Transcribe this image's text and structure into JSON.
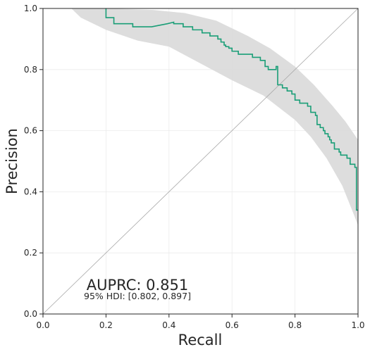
{
  "chart_data": {
    "type": "line",
    "xlabel": "Recall",
    "ylabel": "Precision",
    "xlim": [
      0,
      1
    ],
    "ylim": [
      0,
      1
    ],
    "x_ticks": [
      "0.0",
      "0.2",
      "0.4",
      "0.6",
      "0.8",
      "1.0"
    ],
    "y_ticks": [
      "0.0",
      "0.2",
      "0.4",
      "0.6",
      "0.8",
      "1.0"
    ],
    "grid": true,
    "reference_line": {
      "x": [
        0,
        1
      ],
      "y": [
        0,
        1
      ]
    },
    "annotations": {
      "auprc": "AUPRC: 0.851",
      "hdi": "95% HDI: [0.802, 0.897]"
    },
    "series": [
      {
        "color": "#1a9e77",
        "points": [
          [
            0.2,
            1.0
          ],
          [
            0.2,
            0.97
          ],
          [
            0.225,
            0.97
          ],
          [
            0.225,
            0.95
          ],
          [
            0.285,
            0.95
          ],
          [
            0.285,
            0.94
          ],
          [
            0.345,
            0.94
          ],
          [
            0.395,
            0.95
          ],
          [
            0.415,
            0.955
          ],
          [
            0.415,
            0.95
          ],
          [
            0.445,
            0.95
          ],
          [
            0.445,
            0.94
          ],
          [
            0.475,
            0.94
          ],
          [
            0.475,
            0.93
          ],
          [
            0.505,
            0.93
          ],
          [
            0.505,
            0.92
          ],
          [
            0.53,
            0.92
          ],
          [
            0.53,
            0.91
          ],
          [
            0.555,
            0.91
          ],
          [
            0.555,
            0.9
          ],
          [
            0.565,
            0.9
          ],
          [
            0.565,
            0.89
          ],
          [
            0.575,
            0.89
          ],
          [
            0.575,
            0.88
          ],
          [
            0.58,
            0.88
          ],
          [
            0.58,
            0.875
          ],
          [
            0.59,
            0.875
          ],
          [
            0.59,
            0.87
          ],
          [
            0.6,
            0.87
          ],
          [
            0.6,
            0.86
          ],
          [
            0.62,
            0.86
          ],
          [
            0.62,
            0.85
          ],
          [
            0.65,
            0.85
          ],
          [
            0.665,
            0.85
          ],
          [
            0.665,
            0.84
          ],
          [
            0.69,
            0.84
          ],
          [
            0.69,
            0.83
          ],
          [
            0.705,
            0.83
          ],
          [
            0.705,
            0.81
          ],
          [
            0.715,
            0.81
          ],
          [
            0.715,
            0.8
          ],
          [
            0.74,
            0.8
          ],
          [
            0.74,
            0.81
          ],
          [
            0.745,
            0.81
          ],
          [
            0.745,
            0.75
          ],
          [
            0.76,
            0.75
          ],
          [
            0.76,
            0.74
          ],
          [
            0.775,
            0.74
          ],
          [
            0.775,
            0.73
          ],
          [
            0.79,
            0.73
          ],
          [
            0.79,
            0.72
          ],
          [
            0.8,
            0.72
          ],
          [
            0.8,
            0.7
          ],
          [
            0.815,
            0.7
          ],
          [
            0.815,
            0.69
          ],
          [
            0.84,
            0.69
          ],
          [
            0.84,
            0.68
          ],
          [
            0.85,
            0.68
          ],
          [
            0.85,
            0.66
          ],
          [
            0.865,
            0.66
          ],
          [
            0.865,
            0.65
          ],
          [
            0.87,
            0.65
          ],
          [
            0.87,
            0.62
          ],
          [
            0.88,
            0.62
          ],
          [
            0.88,
            0.61
          ],
          [
            0.89,
            0.61
          ],
          [
            0.89,
            0.6
          ],
          [
            0.895,
            0.6
          ],
          [
            0.895,
            0.59
          ],
          [
            0.905,
            0.59
          ],
          [
            0.905,
            0.58
          ],
          [
            0.91,
            0.58
          ],
          [
            0.91,
            0.57
          ],
          [
            0.915,
            0.57
          ],
          [
            0.915,
            0.56
          ],
          [
            0.925,
            0.56
          ],
          [
            0.925,
            0.54
          ],
          [
            0.94,
            0.54
          ],
          [
            0.94,
            0.53
          ],
          [
            0.945,
            0.53
          ],
          [
            0.945,
            0.52
          ],
          [
            0.965,
            0.52
          ],
          [
            0.965,
            0.51
          ],
          [
            0.975,
            0.51
          ],
          [
            0.975,
            0.49
          ],
          [
            0.99,
            0.49
          ],
          [
            0.99,
            0.48
          ],
          [
            0.995,
            0.48
          ],
          [
            0.995,
            0.34
          ],
          [
            1.0,
            0.34
          ]
        ]
      }
    ],
    "band": {
      "color": "#d9d9d9",
      "upper": [
        [
          0.09,
          1.0
        ],
        [
          0.2,
          1.0
        ],
        [
          0.35,
          0.995
        ],
        [
          0.45,
          0.985
        ],
        [
          0.55,
          0.96
        ],
        [
          0.65,
          0.91
        ],
        [
          0.72,
          0.87
        ],
        [
          0.8,
          0.81
        ],
        [
          0.86,
          0.75
        ],
        [
          0.92,
          0.68
        ],
        [
          0.96,
          0.63
        ],
        [
          1.0,
          0.57
        ]
      ],
      "lower": [
        [
          1.0,
          0.29
        ],
        [
          0.985,
          0.33
        ],
        [
          0.95,
          0.42
        ],
        [
          0.9,
          0.51
        ],
        [
          0.85,
          0.58
        ],
        [
          0.8,
          0.635
        ],
        [
          0.7,
          0.715
        ],
        [
          0.6,
          0.765
        ],
        [
          0.5,
          0.82
        ],
        [
          0.4,
          0.875
        ],
        [
          0.3,
          0.895
        ],
        [
          0.2,
          0.93
        ],
        [
          0.12,
          0.97
        ],
        [
          0.09,
          1.0
        ]
      ]
    }
  }
}
